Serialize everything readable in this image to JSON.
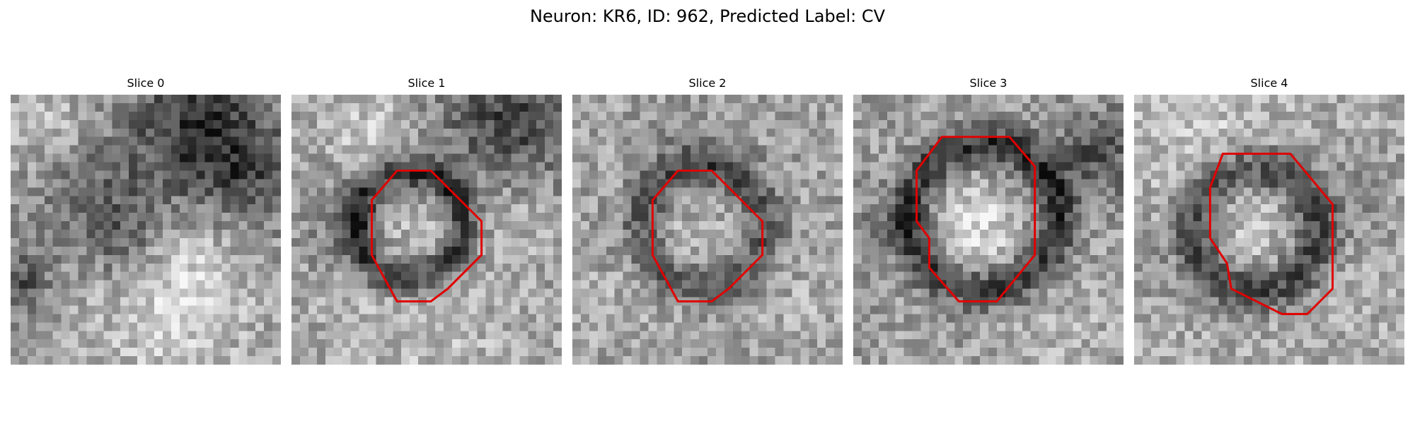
{
  "figure": {
    "title": "Neuron: KR6, ID: 962, Predicted Label: CV"
  },
  "panels": [
    {
      "title": "Slice 0",
      "has_contour": false
    },
    {
      "title": "Slice 1",
      "has_contour": true
    },
    {
      "title": "Slice 2",
      "has_contour": true
    },
    {
      "title": "Slice 3",
      "has_contour": true
    },
    {
      "title": "Slice 4",
      "has_contour": true
    }
  ],
  "colors": {
    "contour": "#e00000",
    "background": "#ffffff",
    "text": "#000000"
  },
  "image": {
    "colormap": "grayscale",
    "grid_size": 32
  }
}
